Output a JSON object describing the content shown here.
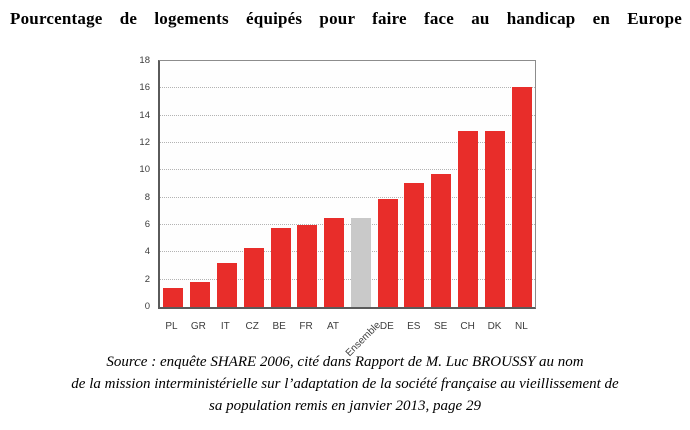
{
  "page": {
    "title": "Pourcentage de logements équipés pour faire face au handicap en Europe"
  },
  "source": {
    "lines": [
      "Source : enquête SHARE 2006, cité dans Rapport de M. Luc BROUSSY au nom",
      "de la mission interministérielle sur l’adaptation de la société française au vieillissement de",
      "sa population remis en janvier 2013, page 29"
    ]
  },
  "chart_data": {
    "type": "bar",
    "title": "Pourcentage de logements équipés pour faire face au handicap en Europe",
    "categories": [
      "PL",
      "GR",
      "IT",
      "CZ",
      "BE",
      "FR",
      "AT",
      "Ensemble",
      "DE",
      "ES",
      "SE",
      "CH",
      "DK",
      "NL"
    ],
    "values": [
      1.4,
      1.8,
      3.2,
      4.3,
      5.8,
      6.0,
      6.5,
      6.5,
      7.9,
      9.1,
      9.7,
      12.9,
      12.9,
      16.1
    ],
    "highlight_index": 7,
    "highlight_category": "Ensemble",
    "xlabel": "",
    "ylabel": "",
    "ylim": [
      0,
      18
    ],
    "yticks": [
      0,
      2,
      4,
      6,
      8,
      10,
      12,
      14,
      16,
      18
    ],
    "grid": "horizontal-dotted",
    "legend": "none",
    "colors": {
      "bar": "#e82d2a",
      "highlight_bar": "#c9c9c9",
      "gridline": "#b3b3b3",
      "axis_frame": "#5a5a5a",
      "tick_label": "#3d3d3d",
      "title_text": "#000000"
    }
  }
}
